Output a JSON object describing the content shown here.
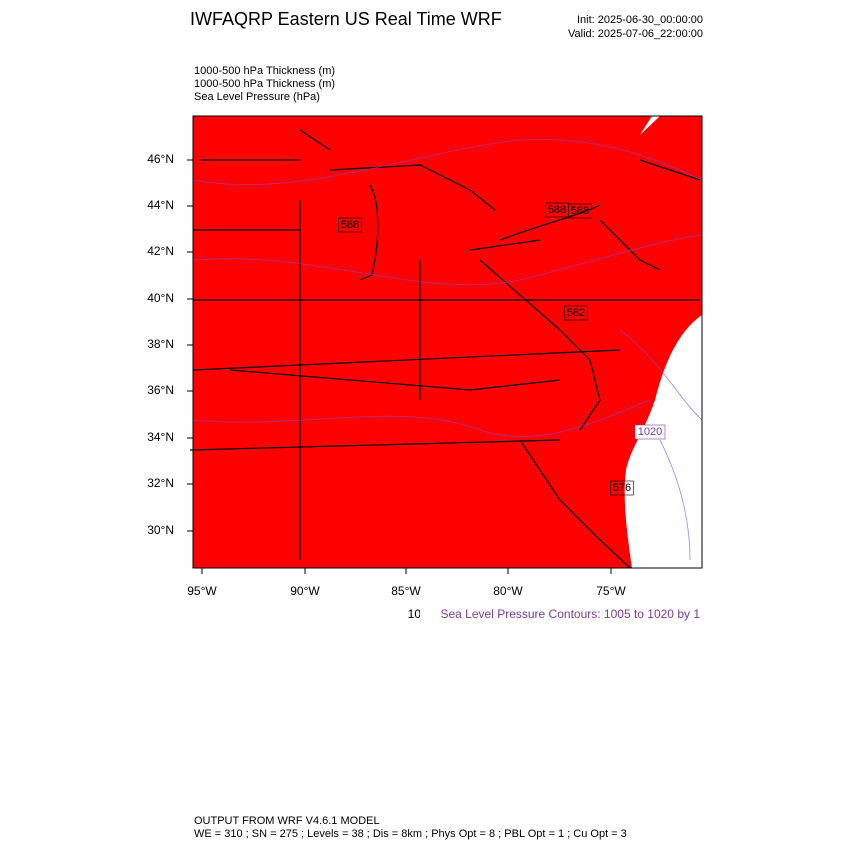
{
  "header": {
    "title": "IWFAQRP Eastern US Real Time WRF",
    "init": "Init: 2025-06-30_00:00:00",
    "valid": "Valid: 2025-07-06_22:00:00"
  },
  "fields": [
    "1000-500 hPa Thickness   (m)",
    "1000-500 hPa Thickness   (m)",
    "Sea Level Pressure   (hPa)"
  ],
  "lat_labels": [
    "46°N",
    "44°N",
    "42°N",
    "40°N",
    "38°N",
    "36°N",
    "34°N",
    "32°N",
    "30°N"
  ],
  "lon_labels": [
    "95°W",
    "90°W",
    "85°W",
    "80°W",
    "75°W"
  ],
  "contour_labels": [
    "588",
    "588",
    "588",
    "582",
    "1020",
    "576"
  ],
  "info": {
    "clipped": "10",
    "slp": "Sea Level Pressure Contours: 1005 to 1020 by 1"
  },
  "footer": {
    "model": "OUTPUT FROM WRF V4.6.1 MODEL",
    "params": "WE = 310 ; SN = 275 ; Levels = 38 ; Dis = 8km ; Phys Opt = 8 ; PBL Opt = 1 ; Cu Opt = 3"
  }
}
